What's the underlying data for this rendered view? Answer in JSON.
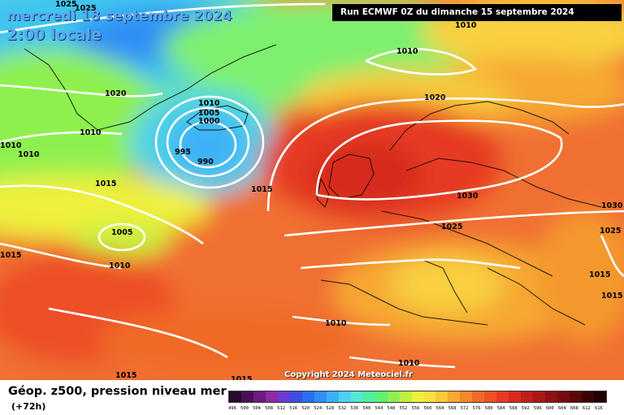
{
  "header": {
    "date": "mercredi 18 septembre 2024",
    "time": "2:00 locale",
    "run": "Run ECMWF 0Z du dimanche 15 septembre 2024"
  },
  "footer": {
    "parameter": "Géop. z500, pression niveau mer",
    "step": "(+72h)",
    "copyright": "Copyright 2024 Meteociel.fr"
  },
  "isobar_labels": [
    "1025",
    "1025",
    "1010",
    "1010",
    "1020",
    "1010",
    "1005",
    "1000",
    "995",
    "990",
    "1010",
    "1010",
    "1010",
    "1015",
    "1015",
    "1005",
    "1010",
    "1015",
    "1020",
    "1030",
    "1030",
    "1025",
    "1025",
    "1015",
    "1015",
    "1010",
    "1010",
    "1015",
    "1015"
  ],
  "legend": {
    "values": [
      "496",
      "500",
      "504",
      "508",
      "512",
      "516",
      "520",
      "524",
      "528",
      "532",
      "536",
      "540",
      "544",
      "548",
      "552",
      "556",
      "560",
      "564",
      "568",
      "572",
      "576",
      "580",
      "584",
      "588",
      "592",
      "596",
      "600",
      "604",
      "608",
      "612",
      "616"
    ],
    "colors": [
      "#2a0a2e",
      "#4a0f55",
      "#6e1a82",
      "#8e2aa8",
      "#6a3bd0",
      "#3a4fe0",
      "#2b6ef0",
      "#2f8ff5",
      "#3db0f5",
      "#4fd0f0",
      "#55e8d0",
      "#4ff0a0",
      "#5ff070",
      "#8ef050",
      "#c0f040",
      "#eef03c",
      "#f8e040",
      "#f8c83a",
      "#f6a832",
      "#f4882c",
      "#f06a28",
      "#ee5026",
      "#e63a22",
      "#d62a1e",
      "#c01e1a",
      "#a81616",
      "#901010",
      "#780c0c",
      "#5a0808",
      "#3a0505",
      "#200202"
    ]
  }
}
